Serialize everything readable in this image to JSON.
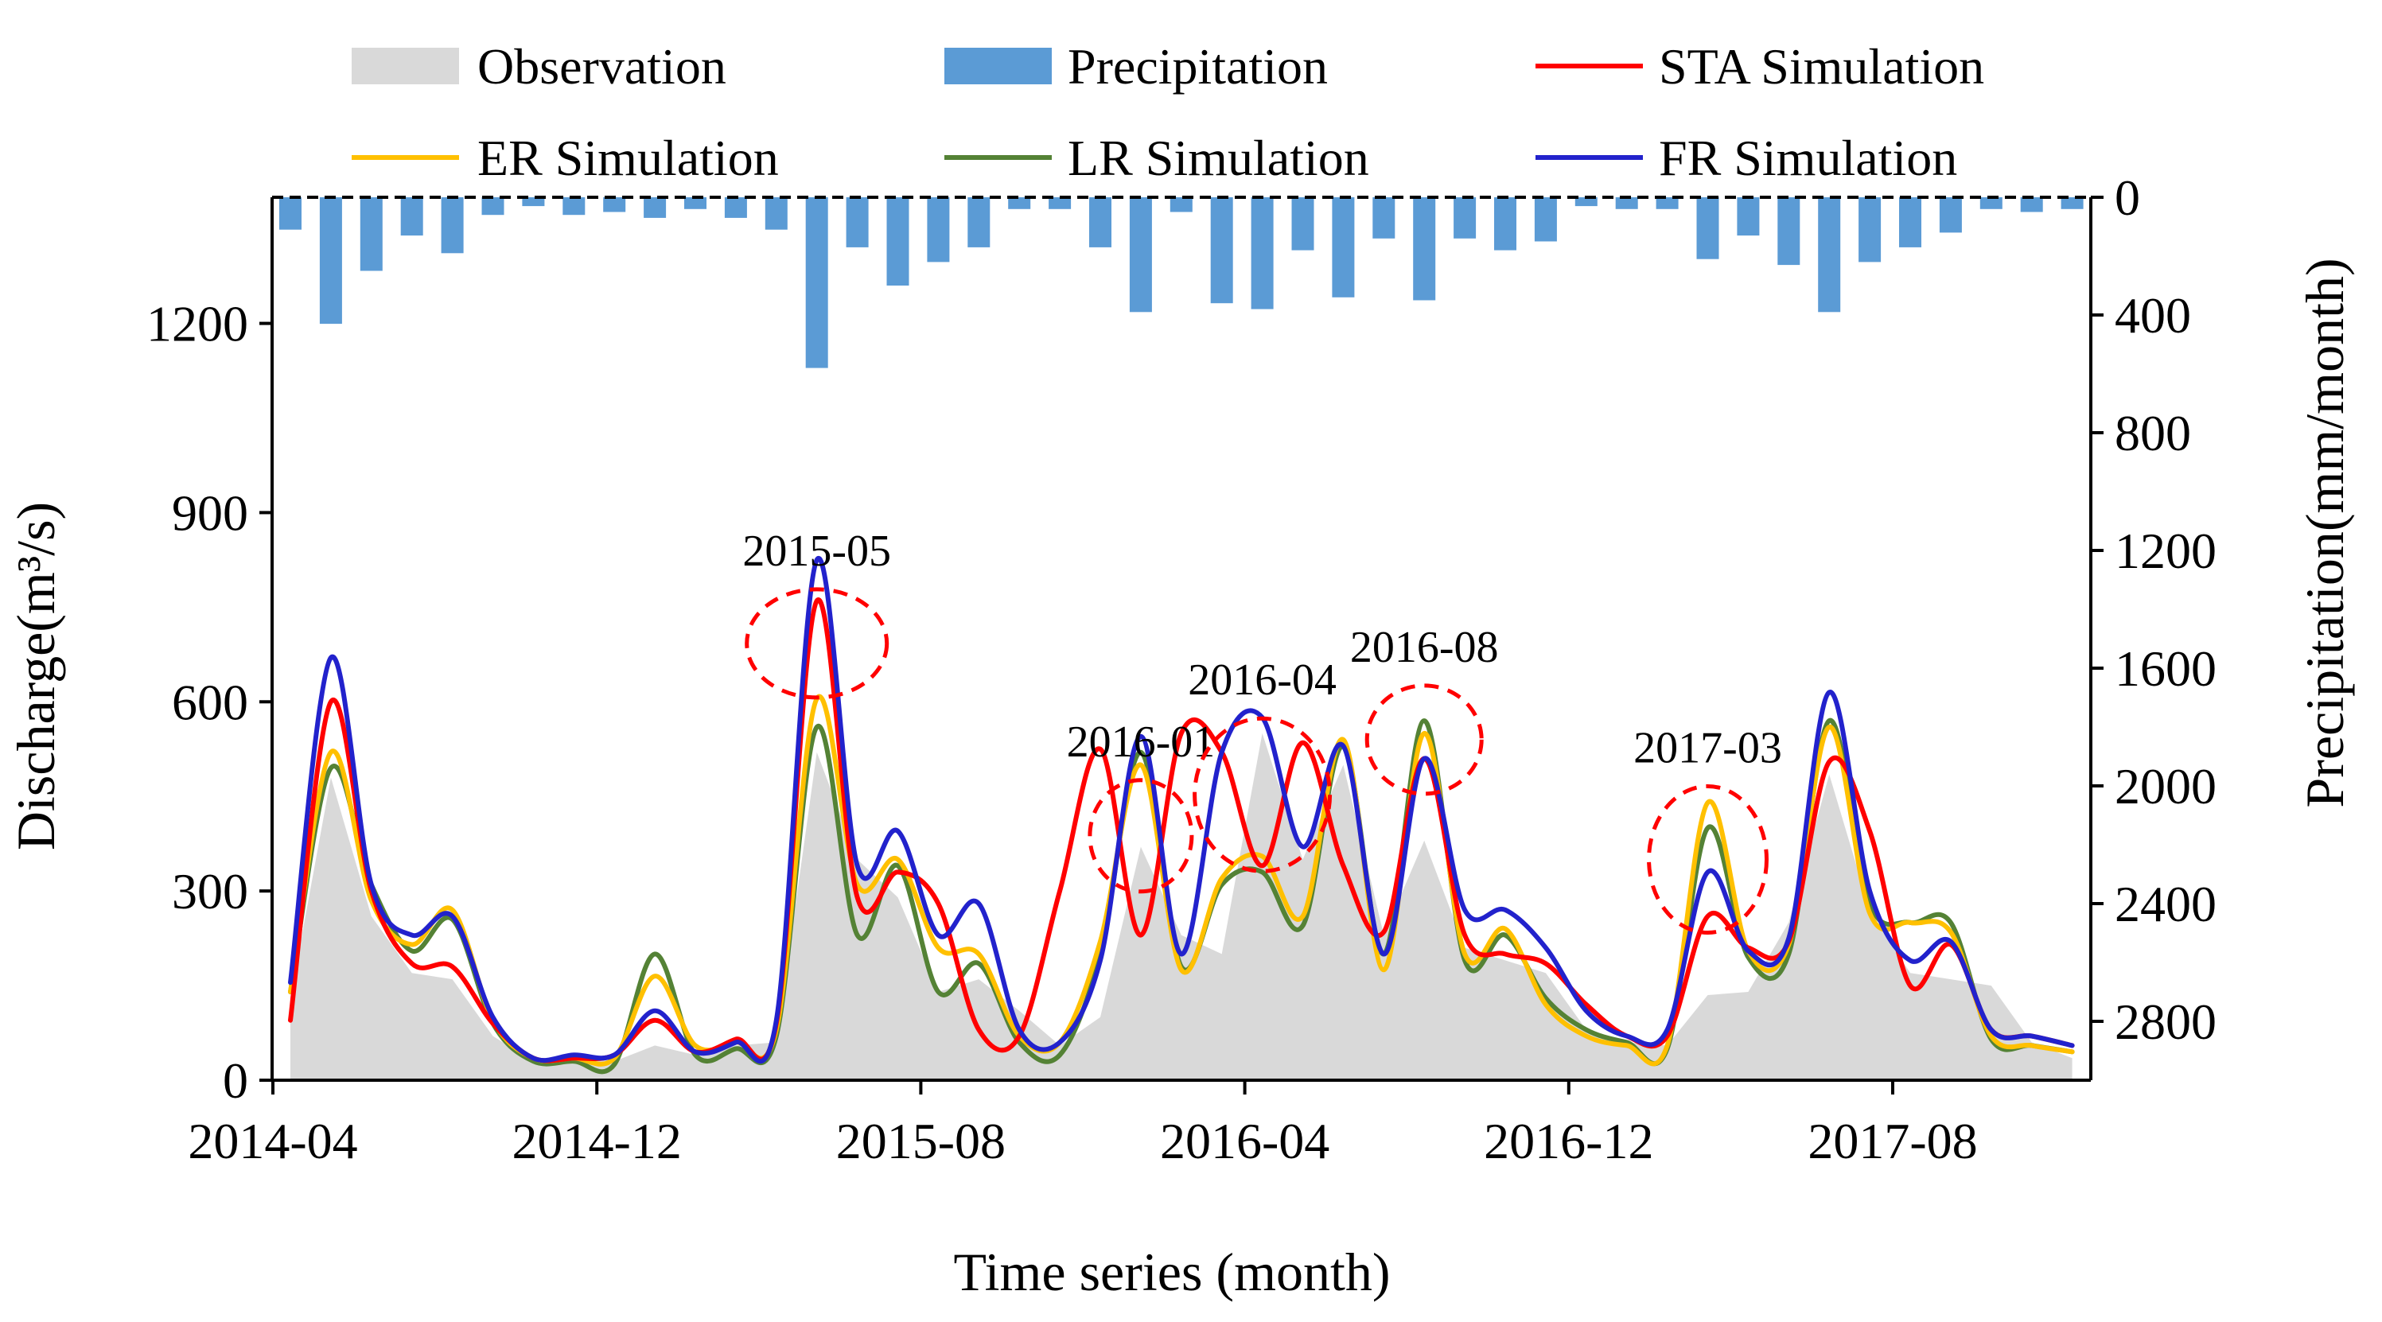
{
  "chart_data": {
    "type": "line",
    "title": "",
    "xlabel": "Time series (month)",
    "ylabel": "Discharge(m³/s)",
    "ylabel_right": "Precipitation(mm/month)",
    "ylim": [
      0,
      1400
    ],
    "ylim_right": [
      3000,
      0
    ],
    "yticks": [
      "0",
      "300",
      "600",
      "900",
      "1200"
    ],
    "yticks_right": [
      "0",
      "400",
      "800",
      "1200",
      "1600",
      "2000",
      "2400",
      "2800"
    ],
    "xtick_labels": [
      "2014-04",
      "2014-12",
      "2015-08",
      "2016-04",
      "2016-12",
      "2017-08"
    ],
    "x": [
      "2014-04",
      "2014-05",
      "2014-06",
      "2014-07",
      "2014-08",
      "2014-09",
      "2014-10",
      "2014-11",
      "2014-12",
      "2015-01",
      "2015-02",
      "2015-03",
      "2015-04",
      "2015-05",
      "2015-06",
      "2015-07",
      "2015-08",
      "2015-09",
      "2015-10",
      "2015-11",
      "2015-12",
      "2016-01",
      "2016-02",
      "2016-03",
      "2016-04",
      "2016-05",
      "2016-06",
      "2016-07",
      "2016-08",
      "2016-09",
      "2016-10",
      "2016-11",
      "2016-12",
      "2017-01",
      "2017-02",
      "2017-03",
      "2017-04",
      "2017-05",
      "2017-06",
      "2017-07",
      "2017-08",
      "2017-09",
      "2017-10",
      "2017-11",
      "2017-12"
    ],
    "legend": {
      "observation": "Observation",
      "precipitation": "Precipitation",
      "sta": "STA Simulation",
      "er": "ER Simulation",
      "lr": "LR Simulation",
      "fr": "FR Simulation"
    },
    "colors": {
      "observation": "#d9d9d9",
      "precipitation": "#5b9bd5",
      "sta": "#ff0000",
      "er": "#ffc000",
      "lr": "#548235",
      "fr": "#2222cc",
      "annotation": "#ff0000"
    },
    "observation": [
      130,
      480,
      260,
      170,
      160,
      70,
      30,
      40,
      30,
      55,
      40,
      55,
      60,
      520,
      350,
      290,
      140,
      160,
      110,
      55,
      100,
      370,
      230,
      200,
      550,
      350,
      500,
      230,
      380,
      210,
      190,
      170,
      80,
      60,
      55,
      135,
      140,
      250,
      485,
      270,
      170,
      160,
      150,
      60,
      35
    ],
    "precipitation": [
      110,
      430,
      250,
      130,
      190,
      60,
      30,
      60,
      50,
      70,
      40,
      70,
      110,
      580,
      170,
      300,
      220,
      170,
      40,
      40,
      170,
      390,
      50,
      360,
      380,
      180,
      340,
      140,
      350,
      140,
      180,
      150,
      30,
      40,
      40,
      210,
      130,
      230,
      390,
      220,
      170,
      120,
      40,
      50,
      40
    ],
    "series": [
      {
        "name": "STA Simulation",
        "key": "sta",
        "values": [
          95,
          600,
          300,
          185,
          180,
          90,
          35,
          35,
          40,
          95,
          45,
          65,
          90,
          760,
          290,
          330,
          280,
          80,
          70,
          300,
          525,
          230,
          550,
          520,
          340,
          535,
          340,
          235,
          510,
          230,
          200,
          185,
          120,
          70,
          70,
          260,
          210,
          220,
          505,
          395,
          150,
          215,
          80,
          70,
          55
        ]
      },
      {
        "name": "ER Simulation",
        "key": "er",
        "values": [
          140,
          520,
          285,
          215,
          270,
          95,
          35,
          35,
          35,
          165,
          55,
          60,
          80,
          605,
          310,
          350,
          210,
          200,
          70,
          60,
          220,
          500,
          175,
          320,
          355,
          260,
          540,
          175,
          550,
          200,
          240,
          120,
          70,
          55,
          55,
          440,
          205,
          215,
          560,
          265,
          250,
          235,
          70,
          55,
          45
        ]
      },
      {
        "name": "LR Simulation",
        "key": "lr",
        "values": [
          140,
          495,
          310,
          205,
          255,
          90,
          30,
          30,
          25,
          200,
          40,
          50,
          70,
          560,
          230,
          340,
          140,
          185,
          60,
          40,
          200,
          520,
          180,
          310,
          330,
          245,
          530,
          200,
          570,
          190,
          230,
          130,
          80,
          60,
          50,
          400,
          195,
          200,
          570,
          280,
          250,
          250,
          65,
          55,
          45
        ]
      },
      {
        "name": "FR Simulation",
        "key": "fr",
        "values": [
          155,
          670,
          310,
          230,
          260,
          100,
          35,
          40,
          40,
          110,
          45,
          60,
          95,
          825,
          340,
          395,
          230,
          280,
          80,
          60,
          190,
          545,
          200,
          520,
          575,
          370,
          530,
          200,
          510,
          270,
          270,
          210,
          110,
          70,
          80,
          330,
          205,
          225,
          615,
          300,
          190,
          220,
          80,
          70,
          55
        ]
      }
    ],
    "annotations": [
      {
        "label": "2015-05",
        "month": 13
      },
      {
        "label": "2016-01",
        "month": 21
      },
      {
        "label": "2016-04",
        "month": 24
      },
      {
        "label": "2016-08",
        "month": 28
      },
      {
        "label": "2017-03",
        "month": 35
      }
    ]
  }
}
